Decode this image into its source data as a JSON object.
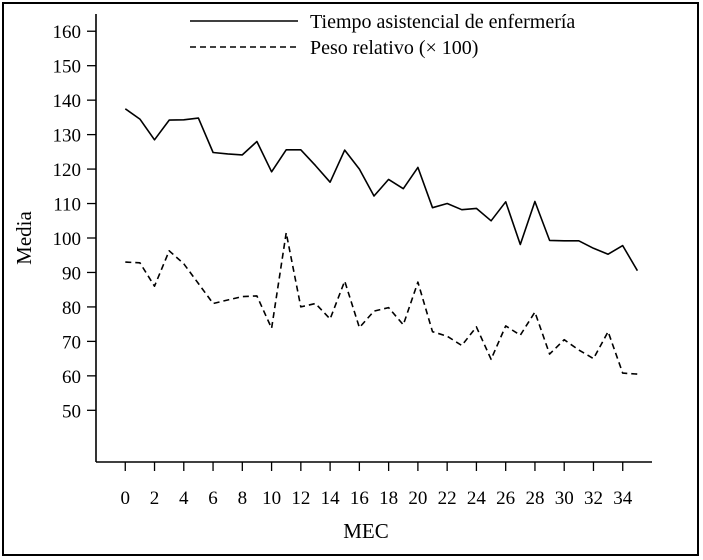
{
  "chart_data": {
    "type": "line",
    "xlabel": "MEC",
    "ylabel": "Media",
    "xlim": [
      -2,
      36
    ],
    "ylim": [
      35,
      165
    ],
    "x_ticks": [
      0,
      2,
      4,
      6,
      8,
      10,
      12,
      14,
      16,
      18,
      20,
      22,
      24,
      26,
      28,
      30,
      32,
      34
    ],
    "y_ticks": [
      50,
      60,
      70,
      80,
      90,
      100,
      110,
      120,
      130,
      140,
      150,
      160
    ],
    "x_tick_labels": [
      "0",
      "2",
      "4",
      "6",
      "8",
      "10",
      "12",
      "14",
      "16",
      "18",
      "20",
      "22",
      "24",
      "26",
      "28",
      "30",
      "32",
      "34"
    ],
    "y_tick_labels": [
      "50",
      "60",
      "70",
      "80",
      "90",
      "100",
      "110",
      "120",
      "130",
      "140",
      "150",
      "160"
    ],
    "grid": false,
    "legend_position": "top-right",
    "x": [
      0,
      1,
      2,
      3,
      4,
      5,
      6,
      7,
      8,
      9,
      10,
      11,
      12,
      13,
      14,
      15,
      16,
      17,
      18,
      19,
      20,
      21,
      22,
      23,
      24,
      25,
      26,
      27,
      28,
      29,
      30,
      31,
      32,
      33,
      34,
      35
    ],
    "series": [
      {
        "name": "Tiempo asistencial de enfermería",
        "style": "solid",
        "color": "#000000",
        "values": [
          137.5,
          134.5,
          128.5,
          134.2,
          134.3,
          134.8,
          124.8,
          124.4,
          124.1,
          128.0,
          119.2,
          125.6,
          125.6,
          121.0,
          116.2,
          125.5,
          120.0,
          112.2,
          117.0,
          114.3,
          120.5,
          108.8,
          110.0,
          108.2,
          108.6,
          105.0,
          110.5,
          98.1,
          110.6,
          99.3,
          99.2,
          99.2,
          97.0,
          95.3,
          97.8,
          90.5
        ]
      },
      {
        "name": "Peso relativo (× 100)",
        "style": "dashed",
        "color": "#000000",
        "values": [
          93.0,
          92.8,
          86.0,
          96.3,
          92.5,
          86.8,
          81.0,
          82.0,
          83.0,
          83.2,
          73.8,
          101.5,
          80.0,
          81.0,
          76.5,
          87.5,
          74.0,
          78.8,
          79.8,
          74.8,
          87.2,
          72.8,
          71.5,
          68.8,
          74.2,
          64.8,
          74.5,
          71.8,
          78.5,
          66.3,
          70.5,
          67.5,
          65.0,
          72.8,
          60.8,
          60.5
        ]
      }
    ]
  }
}
